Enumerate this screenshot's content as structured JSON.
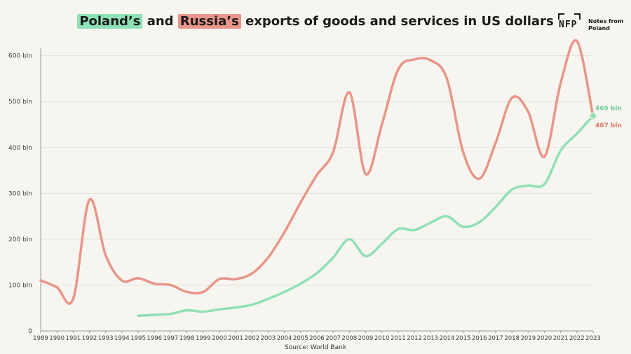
{
  "title": {
    "part1": "Poland’s",
    "part2": " and ",
    "part3": "Russia’s",
    "part4": " exports of goods and services in US dollars"
  },
  "logo": {
    "mark": "NFP",
    "line1": "Notes from",
    "line2": "Poland"
  },
  "source": "Source: World Bank",
  "colors": {
    "poland": "#8fe0b5",
    "russia": "#e8958a",
    "background": "#f6f5ef",
    "grid": "#e2e0d8"
  },
  "chart_data": {
    "type": "line",
    "title": "Poland’s and Russia’s exports of goods and services in US dollars",
    "xlabel": "",
    "ylabel": "",
    "x": [
      1989,
      1990,
      1991,
      1992,
      1993,
      1994,
      1995,
      1996,
      1997,
      1998,
      1999,
      2000,
      2001,
      2002,
      2003,
      2004,
      2005,
      2006,
      2007,
      2008,
      2009,
      2010,
      2011,
      2012,
      2013,
      2014,
      2015,
      2016,
      2017,
      2018,
      2019,
      2020,
      2021,
      2022,
      2023
    ],
    "xlim": [
      1989,
      2023
    ],
    "ylim": [
      0,
      630
    ],
    "yticks": [
      0,
      100,
      200,
      300,
      400,
      500,
      600
    ],
    "ytick_labels": [
      "0",
      "100 bln",
      "200 bln",
      "300 bln",
      "400 bln",
      "500 bln",
      "600 bln"
    ],
    "grid": true,
    "series": [
      {
        "name": "Russia",
        "color": "#e8958a",
        "values": [
          110,
          95,
          70,
          286,
          165,
          110,
          115,
          103,
          100,
          85,
          85,
          113,
          113,
          125,
          160,
          215,
          280,
          340,
          390,
          520,
          342,
          450,
          570,
          592,
          590,
          550,
          390,
          332,
          410,
          508,
          478,
          380,
          540,
          632,
          467
        ],
        "end_label": "467 bln"
      },
      {
        "name": "Poland",
        "color": "#8fe0b5",
        "values": [
          null,
          null,
          null,
          null,
          null,
          null,
          33,
          35,
          37,
          45,
          42,
          47,
          51,
          57,
          70,
          85,
          103,
          126,
          160,
          200,
          163,
          190,
          222,
          220,
          236,
          250,
          227,
          237,
          270,
          308,
          317,
          320,
          393,
          430,
          469
        ],
        "end_label": "469 bln"
      }
    ]
  }
}
